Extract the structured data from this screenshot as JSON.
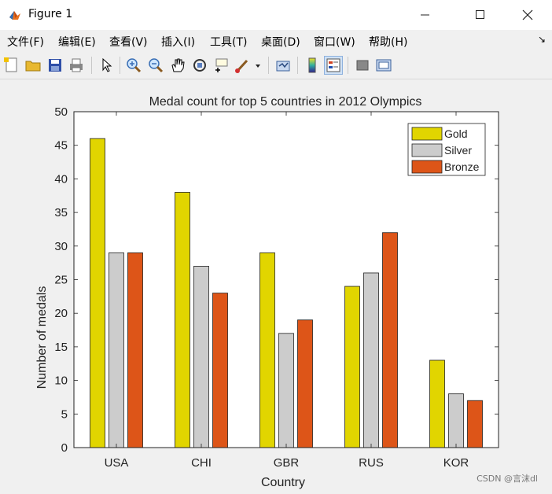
{
  "window": {
    "title": "Figure 1",
    "minimize_icon": "minimize-icon",
    "maximize_icon": "maximize-icon",
    "close_icon": "close-icon"
  },
  "menu": {
    "items": [
      "文件(F)",
      "编辑(E)",
      "查看(V)",
      "插入(I)",
      "工具(T)",
      "桌面(D)",
      "窗口(W)",
      "帮助(H)"
    ]
  },
  "toolbar": {
    "icons": [
      "new-figure-icon",
      "open-file-icon",
      "save-icon",
      "print-icon",
      "select-cursor-icon",
      "zoom-in-icon",
      "zoom-out-icon",
      "pan-hand-icon",
      "rotate-3d-icon",
      "data-cursor-icon",
      "brush-icon",
      "dropdown-icon",
      "link-plot-icon",
      "colorbar-icon",
      "legend-icon",
      "hide-plot-tools-icon",
      "show-plot-tools-icon"
    ]
  },
  "watermark": "CSDN @言沫dl",
  "colors": {
    "gold": "#e1d500",
    "silver": "#cccccc",
    "bronze": "#dd5518"
  },
  "chart_data": {
    "type": "bar",
    "title": "Medal count for top 5 countries in 2012 Olympics",
    "xlabel": "Country",
    "ylabel": "Number of medals",
    "categories": [
      "USA",
      "CHI",
      "GBR",
      "RUS",
      "KOR"
    ],
    "series": [
      {
        "name": "Gold",
        "values": [
          46,
          38,
          29,
          24,
          13
        ]
      },
      {
        "name": "Silver",
        "values": [
          29,
          27,
          17,
          26,
          8
        ]
      },
      {
        "name": "Bronze",
        "values": [
          29,
          23,
          19,
          32,
          7
        ]
      }
    ],
    "ylim": [
      0,
      50
    ],
    "yticks": [
      0,
      5,
      10,
      15,
      20,
      25,
      30,
      35,
      40,
      45,
      50
    ],
    "grid": false,
    "legend": "top-right"
  }
}
